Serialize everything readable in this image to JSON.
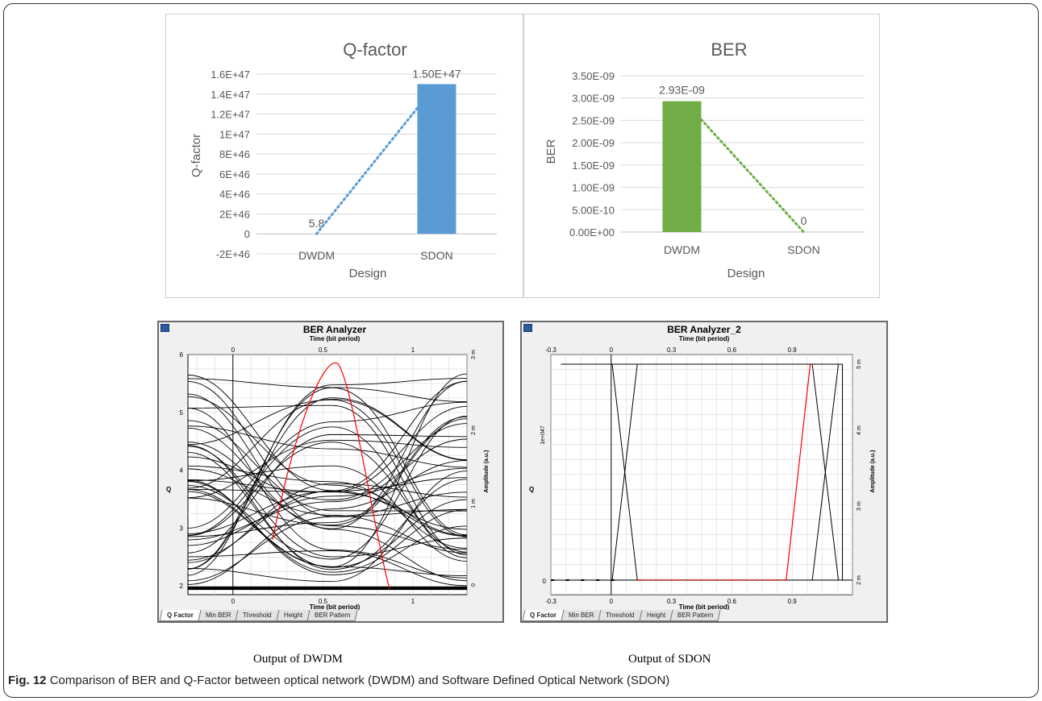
{
  "figure": {
    "label": "Fig. 12",
    "caption": "Comparison of BER and Q-Factor between optical network (DWDM) and Software Defined Optical Network (SDON)",
    "output_dwdm": "Output of DWDM",
    "output_sdon": "Output of SDON"
  },
  "colors": {
    "qfactor_bar": "#5b9bd5",
    "ber_bar": "#70ad47",
    "eye_red": "#ff0000",
    "eye_black": "#000000"
  },
  "optiwins": {
    "left": {
      "title": "BER Analyzer",
      "top_axis_label": "Time (bit period)",
      "bottom_axis_label": "Time (bit period)",
      "left_axis_label": "Q",
      "right_axis_label": "Amplitude (a.u.)",
      "tabs": [
        "Q Factor",
        "Min BER",
        "Threshold",
        "Height",
        "BER Pattern"
      ],
      "x_ticks": [
        "0",
        "0.5",
        "1"
      ],
      "q_ticks": [
        "2",
        "3",
        "4",
        "5",
        "6"
      ],
      "amp_ticks": [
        "0",
        "1 m",
        "2 m",
        "3 m"
      ]
    },
    "right": {
      "title": "BER Analyzer_2",
      "top_axis_label": "Time (bit period)",
      "bottom_axis_label": "Time (bit period)",
      "left_axis_label": "Q",
      "right_axis_label": "Amplitude (a.u.)",
      "tabs": [
        "Q Factor",
        "Min BER",
        "Threshold",
        "Height",
        "BER Pattern"
      ],
      "x_ticks": [
        "-0.3",
        "0",
        "0.3",
        "0.6",
        "0.9"
      ],
      "q_ticks": [
        "0",
        "1e+047"
      ],
      "amp_ticks": [
        "2 m",
        "3 m",
        "4 m",
        "5 m"
      ]
    }
  },
  "chart_data": [
    {
      "type": "bar",
      "title": "Q-factor",
      "xlabel": "Design",
      "ylabel": "Q-factor",
      "categories": [
        "DWDM",
        "SDON"
      ],
      "values": [
        5.8,
        1.5e+47
      ],
      "data_labels": [
        "5.8",
        "1.50E+47"
      ],
      "ylim": [
        -2e+46,
        1.6e+47
      ],
      "yticks": [
        -2e+46,
        0,
        2e+46,
        4e+46,
        6e+46,
        8e+46,
        1e+47,
        1.2e+47,
        1.4e+47,
        1.6e+47
      ],
      "ytick_labels": [
        "-2E+46",
        "0",
        "2E+46",
        "4E+46",
        "6E+46",
        "8E+46",
        "1E+47",
        "1.2E+47",
        "1.4E+47",
        "1.6E+47"
      ],
      "trendline": "linear, dotted",
      "grid": true
    },
    {
      "type": "bar",
      "title": "BER",
      "xlabel": "Design",
      "ylabel": "BER",
      "categories": [
        "DWDM",
        "SDON"
      ],
      "values": [
        2.93e-09,
        0
      ],
      "data_labels": [
        "2.93E-09",
        "0"
      ],
      "ylim": [
        0,
        3.5e-09
      ],
      "yticks": [
        0,
        5e-10,
        1e-09,
        1.5e-09,
        2e-09,
        2.5e-09,
        3e-09,
        3.5e-09
      ],
      "ytick_labels": [
        "0.00E+00",
        "5.00E-10",
        "1.00E-09",
        "1.50E-09",
        "2.00E-09",
        "2.50E-09",
        "3.00E-09",
        "3.50E-09"
      ],
      "trendline": "linear, dotted",
      "grid": true
    }
  ]
}
